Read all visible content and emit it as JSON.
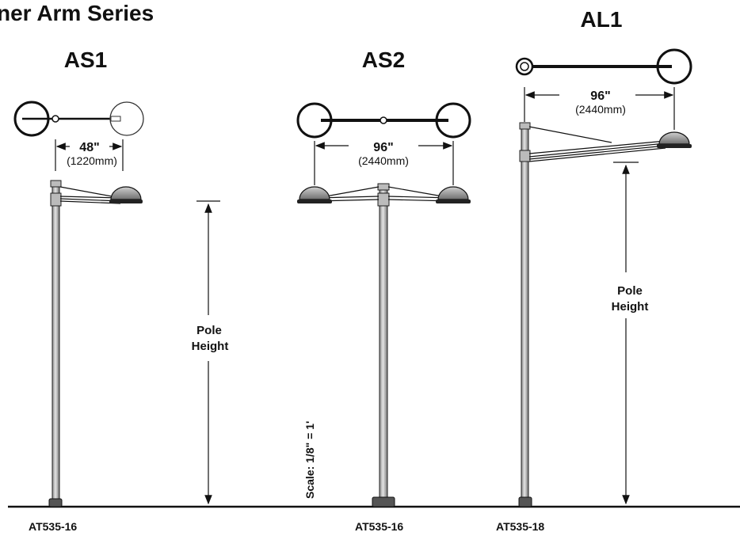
{
  "page": {
    "title": "ner Arm Series"
  },
  "models": {
    "as1": {
      "name": "AS1",
      "span_in": "48\"",
      "span_mm": "(1220mm)",
      "pole_part": "AT535-16"
    },
    "as2": {
      "name": "AS2",
      "span_in": "96\"",
      "span_mm": "(2440mm)",
      "pole_part": "AT535-16"
    },
    "al1": {
      "name": "AL1",
      "span_in": "96\"",
      "span_mm": "(2440mm)",
      "pole_part": "AT535-18"
    }
  },
  "labels": {
    "pole_height_line1": "Pole",
    "pole_height_line2": "Height",
    "scale": "Scale:  1/8\" = 1'"
  },
  "colors": {
    "ink": "#111111",
    "pole_fill": "#cfcfcf",
    "head_fill": "#9a9a9a"
  }
}
